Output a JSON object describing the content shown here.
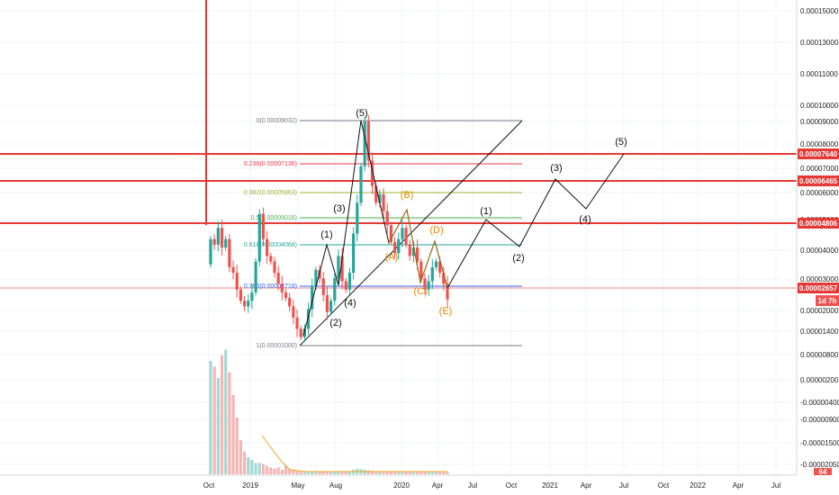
{
  "chart_data": {
    "type": "candlestick",
    "title": "",
    "y_ticks": [
      "0.00015000",
      "0.00013000",
      "0.00011000",
      "0.00010000",
      "0.00009000",
      "0.00008000",
      "0.00007000",
      "0.00006000",
      "0.00005000",
      "0.00004000",
      "0.00003000",
      "0.00002000",
      "0.00001400",
      "0.00000800",
      "0.00000200",
      "-0.00000400",
      "-0.00000900",
      "-0.00001500",
      "-0.00002050"
    ],
    "x_ticks": [
      "Oct",
      "2019",
      "May",
      "Aug",
      "2020",
      "Apr",
      "Jul",
      "Oct",
      "2021",
      "Apr",
      "Jul",
      "Oct",
      "2022",
      "Apr",
      "Jul"
    ],
    "horizontal_levels": [
      {
        "value": "0.00007640",
        "color": "#e53935"
      },
      {
        "value": "0.00006465",
        "color": "#e53935"
      },
      {
        "value": "0.00004806",
        "color": "#e53935"
      }
    ],
    "current_price": {
      "value": "0.00002657",
      "countdown": "1d 7h",
      "color": "#e53935"
    },
    "volume_badge": "64",
    "fibonacci": [
      {
        "ratio": "0",
        "label": "0(0.00009032)",
        "color": "#787b86"
      },
      {
        "ratio": "0.236",
        "label": "0.236(0.00007136)",
        "color": "#f23645"
      },
      {
        "ratio": "0.382",
        "label": "0.382(0.00005963)",
        "color": "#9ab32f"
      },
      {
        "ratio": "0.5",
        "label": "0.5(0.00005016)",
        "color": "#4caf50"
      },
      {
        "ratio": "0.618",
        "label": "0.618(0.00004068)",
        "color": "#26a69a"
      },
      {
        "ratio": "0.786",
        "label": "0.786(0.00002718)",
        "color": "#2962ff"
      },
      {
        "ratio": "1",
        "label": "1(0.00001000)",
        "color": "#787b86"
      }
    ],
    "wave_labels": [
      {
        "text": "(1)",
        "color": "#111"
      },
      {
        "text": "(2)",
        "color": "#111"
      },
      {
        "text": "(3)",
        "color": "#111"
      },
      {
        "text": "(4)",
        "color": "#111"
      },
      {
        "text": "(5)",
        "color": "#111"
      },
      {
        "text": "(A)",
        "color": "#e68a00"
      },
      {
        "text": "(B)",
        "color": "#e68a00"
      },
      {
        "text": "(C)",
        "color": "#e68a00"
      },
      {
        "text": "(D)",
        "color": "#e68a00"
      },
      {
        "text": "(E)",
        "color": "#e68a00"
      },
      {
        "text": "(1)",
        "color": "#111"
      },
      {
        "text": "(2)",
        "color": "#111"
      },
      {
        "text": "(3)",
        "color": "#111"
      },
      {
        "text": "(4)",
        "color": "#111"
      },
      {
        "text": "(5)",
        "color": "#111"
      }
    ],
    "price_series": [
      [
        3.9,
        4.8
      ],
      [
        4.8,
        4.6
      ],
      [
        4.6,
        5.2
      ],
      [
        5.2,
        4.5
      ],
      [
        4.5,
        4.8
      ],
      [
        4.8,
        3.8
      ],
      [
        3.8,
        3.6
      ],
      [
        3.6,
        3.0
      ],
      [
        3.0,
        2.6
      ],
      [
        2.6,
        2.4
      ],
      [
        2.4,
        2.6
      ],
      [
        2.6,
        2.9
      ],
      [
        2.9,
        4.0
      ],
      [
        4.0,
        5.7
      ],
      [
        5.7,
        4.8
      ],
      [
        4.8,
        4.2
      ],
      [
        4.2,
        4.0
      ],
      [
        4.0,
        3.6
      ],
      [
        3.6,
        3.2
      ],
      [
        3.2,
        2.9
      ],
      [
        2.9,
        2.7
      ],
      [
        2.7,
        2.4
      ],
      [
        2.4,
        2.0
      ],
      [
        2.0,
        1.6
      ],
      [
        1.6,
        1.3
      ],
      [
        1.3,
        1.6
      ],
      [
        1.6,
        2.3
      ],
      [
        2.3,
        3.1
      ],
      [
        3.1,
        3.7
      ],
      [
        3.7,
        3.4
      ],
      [
        3.4,
        2.8
      ],
      [
        2.8,
        2.2
      ],
      [
        2.2,
        2.6
      ],
      [
        2.6,
        3.4
      ],
      [
        3.4,
        4.2
      ],
      [
        4.2,
        3.3
      ],
      [
        3.3,
        3.0
      ],
      [
        3.0,
        3.6
      ],
      [
        3.6,
        5.0
      ],
      [
        5.0,
        6.1
      ],
      [
        6.1,
        7.4
      ],
      [
        7.4,
        9.0
      ],
      [
        9.0,
        7.6
      ],
      [
        7.6,
        6.7
      ],
      [
        6.7,
        6.1
      ],
      [
        6.1,
        6.4
      ],
      [
        6.4,
        5.8
      ],
      [
        5.8,
        5.3
      ],
      [
        5.3,
        4.7
      ],
      [
        4.7,
        4.3
      ],
      [
        4.3,
        4.8
      ],
      [
        4.8,
        5.2
      ],
      [
        5.2,
        4.6
      ],
      [
        4.6,
        4.2
      ],
      [
        4.2,
        4.5
      ],
      [
        4.5,
        4.0
      ],
      [
        4.0,
        3.4
      ],
      [
        3.4,
        3.0
      ],
      [
        3.0,
        3.3
      ],
      [
        3.3,
        3.8
      ],
      [
        3.8,
        4.0
      ],
      [
        4.0,
        3.6
      ],
      [
        3.6,
        3.2
      ],
      [
        3.2,
        2.65
      ]
    ],
    "volume_series": [
      2.0,
      1.9,
      1.7,
      2.1,
      2.2,
      1.8,
      1.4,
      1.0,
      0.6,
      0.4,
      0.3,
      0.25,
      0.2,
      0.2,
      0.18,
      0.15,
      0.12,
      0.1,
      0.12,
      0.08,
      0.15,
      0.1,
      0.08,
      0.06,
      0.05,
      0.06,
      0.05,
      0.05,
      0.06,
      0.05,
      0.04,
      0.05,
      0.05,
      0.05,
      0.06,
      0.04,
      0.05,
      0.06,
      0.08,
      0.1,
      0.09,
      0.08,
      0.07,
      0.06,
      0.05,
      0.05,
      0.05,
      0.04,
      0.05,
      0.04,
      0.05,
      0.04,
      0.04,
      0.05,
      0.04,
      0.05,
      0.04,
      0.04,
      0.05,
      0.04,
      0.04,
      0.04,
      0.04,
      0.04
    ],
    "volume_ma_color": "#f5a623",
    "up_color": "#26a69a",
    "down_color": "#ef5350"
  }
}
